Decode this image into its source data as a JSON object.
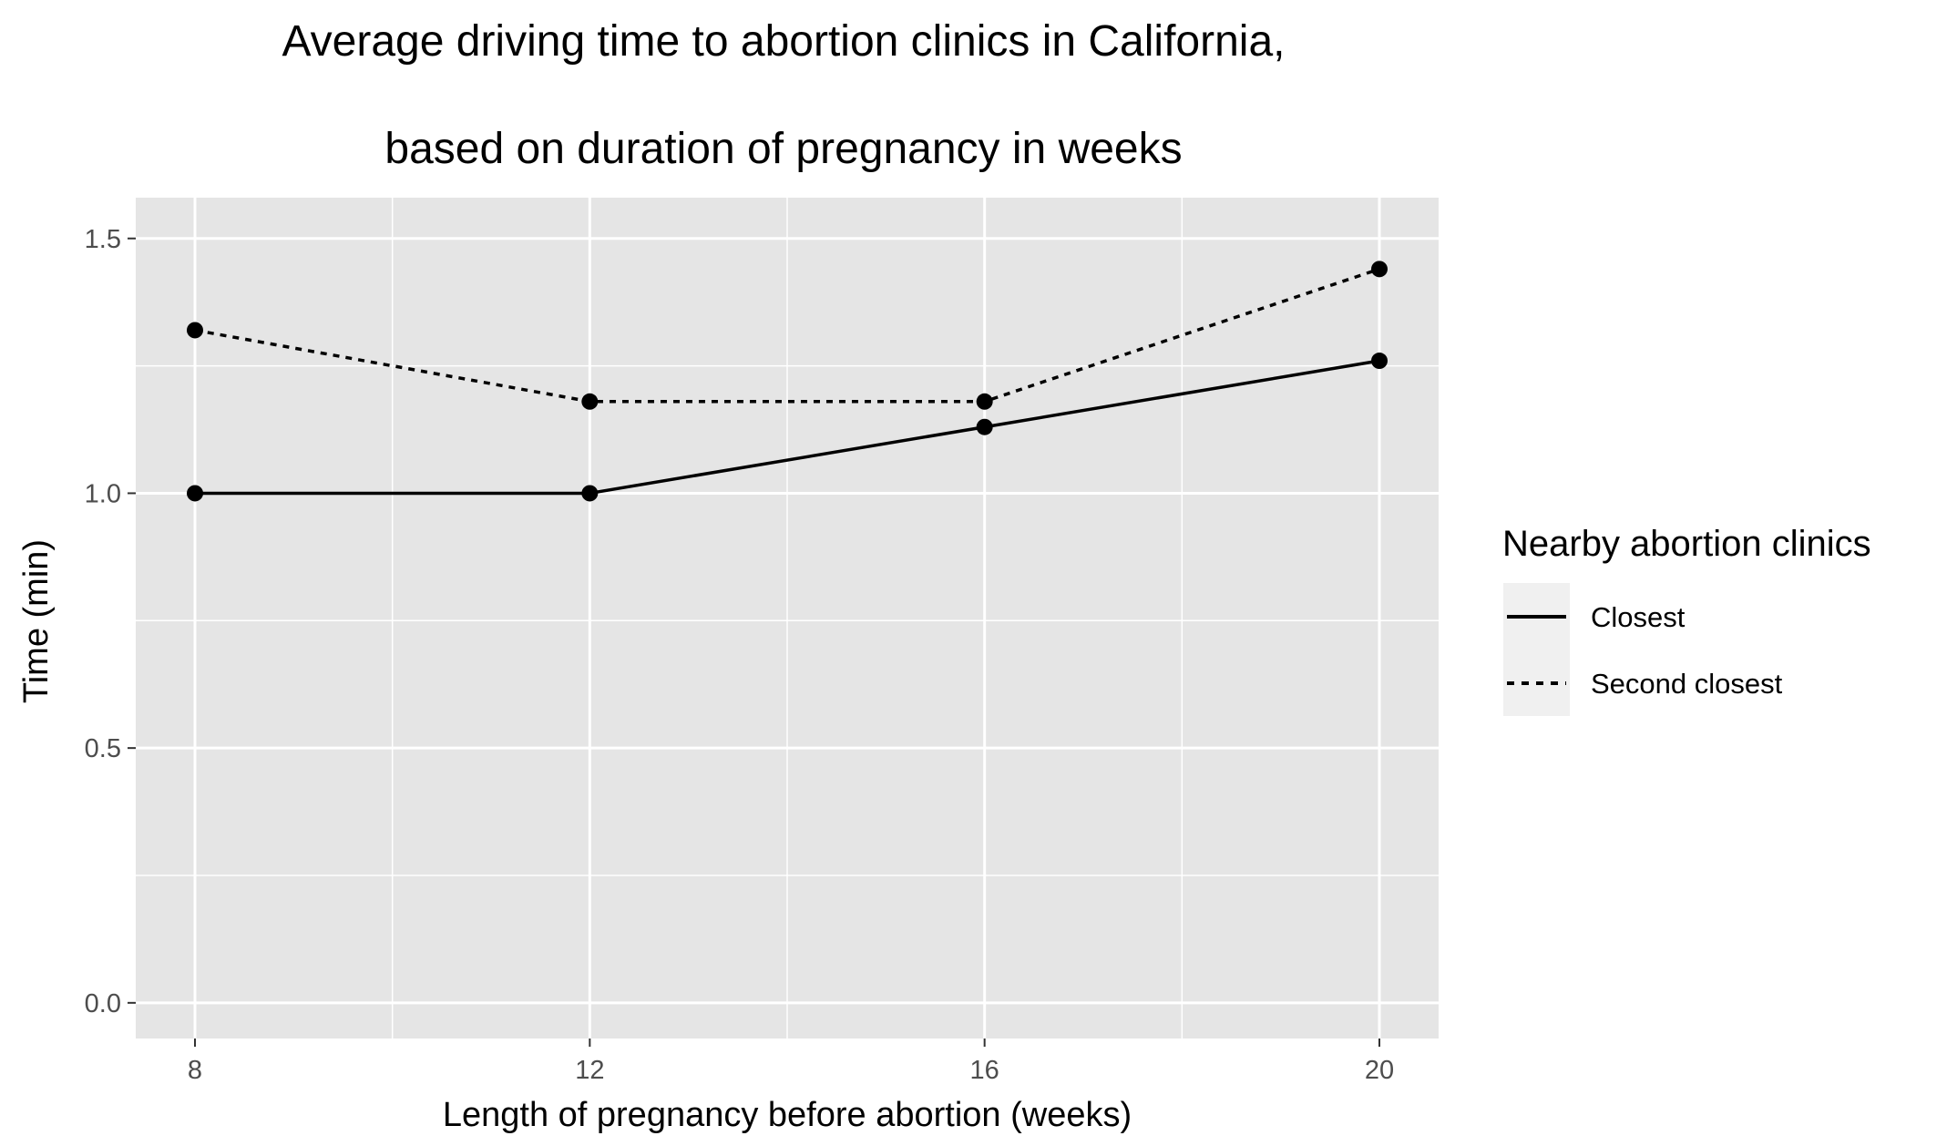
{
  "chart_data": {
    "type": "line",
    "title": "Average driving time to abortion clinics in California,",
    "subtitle": "based on duration of pregnancy in weeks",
    "xlabel": "Length of pregnancy before abortion (weeks)",
    "ylabel": "Time (min)",
    "x": [
      8,
      12,
      16,
      20
    ],
    "xticks": [
      "8",
      "12",
      "16",
      "20"
    ],
    "yticks": [
      "0.0",
      "0.5",
      "1.0",
      "1.5"
    ],
    "xlim": [
      7.4,
      20.6
    ],
    "ylim": [
      -0.07,
      1.58
    ],
    "grid": true,
    "legend": {
      "title": "Nearby abortion clinics",
      "position": "right"
    },
    "series": [
      {
        "name": "Closest",
        "linestyle": "solid",
        "values": [
          1.0,
          1.0,
          1.13,
          1.26
        ]
      },
      {
        "name": "Second closest",
        "linestyle": "dotted",
        "values": [
          1.32,
          1.18,
          1.18,
          1.44
        ]
      }
    ],
    "colors": {
      "panel": "#e5e5e5",
      "grid": "#ffffff",
      "line": "#000000",
      "legend_key": "#f0f0f0"
    }
  }
}
